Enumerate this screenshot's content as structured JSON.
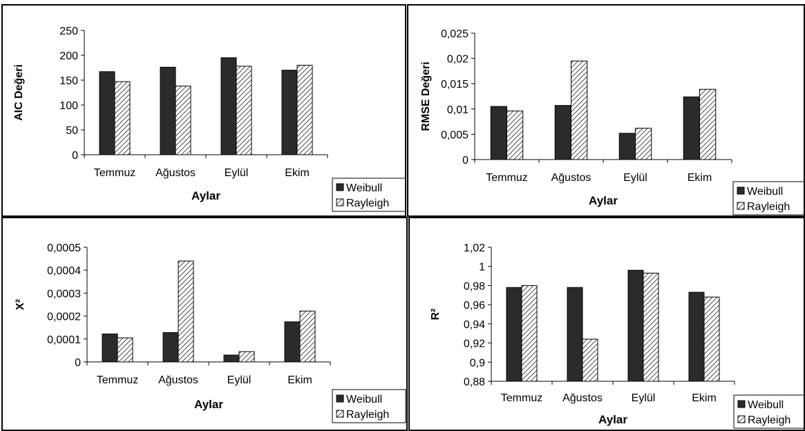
{
  "colors": {
    "weibull": "#2b2b2b",
    "rayleigh_hatch": "#4a4a4a",
    "axis": "#000000"
  },
  "chart_data": [
    {
      "type": "bar",
      "categories": [
        "Temmuz",
        "Ağustos",
        "Eylül",
        "Ekim"
      ],
      "series": [
        {
          "name": "Weibull",
          "pattern": "solid",
          "values": [
            167,
            176,
            195,
            170
          ]
        },
        {
          "name": "Rayleigh",
          "pattern": "hatch",
          "values": [
            147,
            138,
            178,
            180
          ]
        }
      ],
      "xlabel": "Aylar",
      "ylabel": "AIC Değeri",
      "ylim": [
        0,
        250
      ],
      "ticks": [
        "0",
        "50",
        "100",
        "150",
        "200",
        "250"
      ],
      "legend_position": "bottom-right",
      "grid": false
    },
    {
      "type": "bar",
      "categories": [
        "Temmuz",
        "Ağustos",
        "Eylül",
        "Ekim"
      ],
      "series": [
        {
          "name": "Weibull",
          "pattern": "solid",
          "values": [
            0.0105,
            0.0107,
            0.0052,
            0.0124
          ]
        },
        {
          "name": "Rayleigh",
          "pattern": "hatch",
          "values": [
            0.0096,
            0.0195,
            0.0062,
            0.0139
          ]
        }
      ],
      "xlabel": "Aylar",
      "ylabel": "RMSE Değeri",
      "ylim": [
        0,
        0.025
      ],
      "ticks": [
        "0",
        "0,005",
        "0,01",
        "0,015",
        "0,02",
        "0,025"
      ],
      "legend_position": "bottom-right",
      "grid": false
    },
    {
      "type": "bar",
      "categories": [
        "Temmuz",
        "Ağustos",
        "Eylül",
        "Ekim"
      ],
      "series": [
        {
          "name": "Weibull",
          "pattern": "solid",
          "values": [
            0.000122,
            0.000128,
            3e-05,
            0.000175
          ]
        },
        {
          "name": "Rayleigh",
          "pattern": "hatch",
          "values": [
            0.000105,
            0.00044,
            4.5e-05,
            0.000222
          ]
        }
      ],
      "xlabel": "Aylar",
      "ylabel": "Χ²",
      "ylim": [
        0,
        0.0005
      ],
      "ticks": [
        "0",
        "0,0001",
        "0,0002",
        "0,0003",
        "0,0004",
        "0,0005"
      ],
      "legend_position": "bottom-right",
      "grid": false
    },
    {
      "type": "bar",
      "categories": [
        "Temmuz",
        "Ağustos",
        "Eylül",
        "Ekim"
      ],
      "series": [
        {
          "name": "Weibull",
          "pattern": "solid",
          "values": [
            0.978,
            0.978,
            0.996,
            0.973
          ]
        },
        {
          "name": "Rayleigh",
          "pattern": "hatch",
          "values": [
            0.98,
            0.924,
            0.993,
            0.968
          ]
        }
      ],
      "xlabel": "Aylar",
      "ylabel": "R²",
      "ylim": [
        0.88,
        1.02
      ],
      "ticks": [
        "0,88",
        "0,9",
        "0,92",
        "0,94",
        "0,96",
        "0,98",
        "1",
        "1,02"
      ],
      "legend_position": "bottom-right",
      "grid": false
    }
  ]
}
